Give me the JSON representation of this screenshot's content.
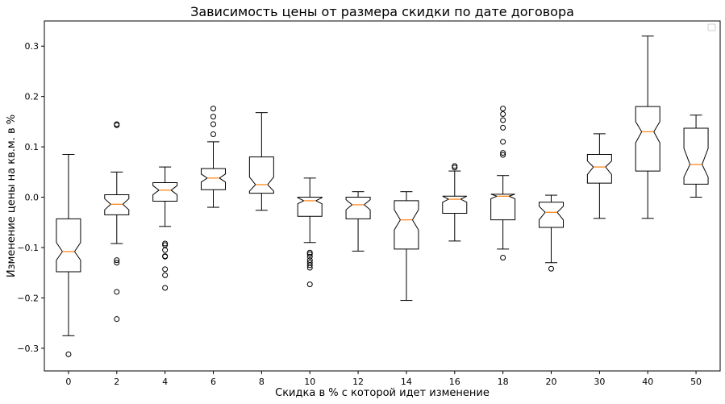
{
  "chart_data": {
    "type": "boxplot",
    "notched": true,
    "title": "Зависимость цены от размера скидки по дате договора",
    "xlabel": "Скидка в %  с которой идет изменение",
    "ylabel": "Изменение цены на кв.м. в %",
    "ylim": [
      -0.345,
      0.35
    ],
    "yticks": [
      -0.3,
      -0.2,
      -0.1,
      0.0,
      0.1,
      0.2,
      0.3
    ],
    "ytick_labels": [
      "−0.3",
      "−0.2",
      "−0.1",
      "0.0",
      "0.1",
      "0.2",
      "0.3"
    ],
    "grid": false,
    "legend": {
      "placement": "top-right",
      "entries": []
    },
    "colors": {
      "box": "#000000",
      "median": "#ff7f0e",
      "flier": "#000000"
    },
    "categories": [
      "0",
      "2",
      "4",
      "6",
      "8",
      "10",
      "12",
      "14",
      "16",
      "18",
      "20",
      "30",
      "40",
      "50"
    ],
    "boxes": [
      {
        "label": "0",
        "whislo": -0.275,
        "q1": -0.148,
        "med": -0.108,
        "q3": -0.043,
        "whishi": 0.085,
        "notch": [
          -0.125,
          -0.09
        ],
        "fliers": [
          -0.312
        ]
      },
      {
        "label": "2",
        "whislo": -0.092,
        "q1": -0.035,
        "med": -0.014,
        "q3": 0.005,
        "whishi": 0.05,
        "notch": [
          -0.025,
          -0.003
        ],
        "fliers": [
          0.143,
          0.145,
          -0.125,
          -0.13,
          -0.188,
          -0.242
        ]
      },
      {
        "label": "4",
        "whislo": -0.058,
        "q1": -0.008,
        "med": 0.014,
        "q3": 0.029,
        "whishi": 0.06,
        "notch": [
          0.005,
          0.023
        ],
        "fliers": [
          -0.092,
          -0.095,
          -0.105,
          -0.117,
          -0.118,
          -0.143,
          -0.155,
          -0.18
        ]
      },
      {
        "label": "6",
        "whislo": -0.02,
        "q1": 0.015,
        "med": 0.038,
        "q3": 0.057,
        "whishi": 0.11,
        "notch": [
          0.03,
          0.046
        ],
        "fliers": [
          0.125,
          0.145,
          0.16,
          0.176
        ]
      },
      {
        "label": "8",
        "whislo": -0.026,
        "q1": 0.008,
        "med": 0.025,
        "q3": 0.08,
        "whishi": 0.168,
        "notch": [
          0.012,
          0.04
        ],
        "fliers": []
      },
      {
        "label": "10",
        "whislo": -0.09,
        "q1": -0.038,
        "med": -0.007,
        "q3": 0.0,
        "whishi": 0.038,
        "notch": [
          -0.013,
          -0.001
        ],
        "fliers": [
          -0.11,
          -0.113,
          -0.118,
          -0.125,
          -0.13,
          -0.135,
          -0.14,
          -0.173
        ]
      },
      {
        "label": "12",
        "whislo": -0.107,
        "q1": -0.043,
        "med": -0.015,
        "q3": 0.0,
        "whishi": 0.011,
        "notch": [
          -0.025,
          -0.005
        ],
        "fliers": []
      },
      {
        "label": "14",
        "whislo": -0.205,
        "q1": -0.103,
        "med": -0.045,
        "q3": -0.007,
        "whishi": 0.011,
        "notch": [
          -0.065,
          -0.025
        ],
        "fliers": []
      },
      {
        "label": "16",
        "whislo": -0.087,
        "q1": -0.032,
        "med": -0.004,
        "q3": 0.002,
        "whishi": 0.052,
        "notch": [
          -0.01,
          0.002
        ],
        "fliers": [
          0.059,
          0.062
        ]
      },
      {
        "label": "18",
        "whislo": -0.103,
        "q1": -0.045,
        "med": 0.002,
        "q3": 0.006,
        "whishi": 0.043,
        "notch": [
          -0.003,
          0.006
        ],
        "fliers": [
          0.084,
          0.088,
          0.11,
          0.138,
          0.153,
          0.165,
          0.176,
          -0.12
        ]
      },
      {
        "label": "20",
        "whislo": -0.13,
        "q1": -0.06,
        "med": -0.03,
        "q3": -0.01,
        "whishi": 0.004,
        "notch": [
          -0.045,
          -0.018
        ],
        "fliers": [
          -0.142
        ]
      },
      {
        "label": "30",
        "whislo": -0.042,
        "q1": 0.028,
        "med": 0.06,
        "q3": 0.085,
        "whishi": 0.126,
        "notch": [
          0.045,
          0.072
        ],
        "fliers": []
      },
      {
        "label": "40",
        "whislo": -0.042,
        "q1": 0.052,
        "med": 0.13,
        "q3": 0.18,
        "whishi": 0.32,
        "notch": [
          0.108,
          0.15
        ],
        "fliers": []
      },
      {
        "label": "50",
        "whislo": 0.0,
        "q1": 0.026,
        "med": 0.065,
        "q3": 0.137,
        "whishi": 0.163,
        "notch": [
          0.04,
          0.097
        ],
        "fliers": []
      }
    ]
  }
}
